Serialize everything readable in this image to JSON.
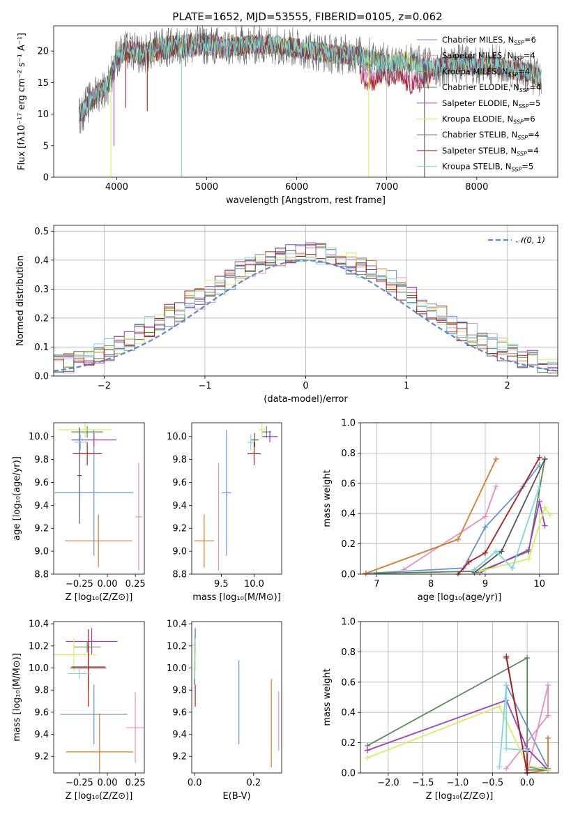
{
  "figure_title": "PLATE=1652, MJD=53555, FIBERID=0105, z=0.062",
  "model_colors": [
    "#6a8fd8",
    "#e58fbf",
    "#d9792a",
    "#5a8a5a",
    "#9a3fbf",
    "#d6f05a",
    "#555555",
    "#b01c1c",
    "#7dd8dc"
  ],
  "chart_data": [
    {
      "id": "spectrum",
      "type": "line",
      "title": "PLATE=1652, MJD=53555, FIBERID=0105, z=0.062",
      "xlabel": "wavelength [Angstrom, rest frame]",
      "ylabel": "Flux [fλ10⁻¹⁷ erg cm⁻² s⁻¹ A⁻¹]",
      "xlim": [
        3300,
        8900
      ],
      "ylim": [
        0,
        24
      ],
      "xticks": [
        4000,
        5000,
        6000,
        7000,
        8000
      ],
      "yticks": [
        0,
        5,
        10,
        15,
        20
      ],
      "grid": false,
      "legend": "top-right",
      "legend_entries": [
        "Chabrier MILES, N_SSP=6",
        "Salpeter MILES, N_SSP=4",
        "Kroupa MILES, N_SSP=4",
        "Chabrier ELODIE, N_SSP=4",
        "Salpeter ELODIE, N_SSP=5",
        "Kroupa ELODIE, N_SSP=6",
        "Chabrier STELIB, N_SSP=4",
        "Salpeter STELIB, N_SSP=4",
        "Kroupa STELIB, N_SSP=5"
      ],
      "legend_colors": [
        "#6a8fd8",
        "#e58fbf",
        "#d9792a",
        "#5a8a5a",
        "#9a3fbf",
        "#d6f05a",
        "#555555",
        "#b01c1c",
        "#7dd8dc"
      ],
      "continuum": {
        "x": [
          3600,
          3700,
          3800,
          3900,
          4000,
          4100,
          4300,
          4500,
          4800,
          5000,
          5200,
          5500,
          5800,
          6000,
          6200,
          6400,
          6600,
          6800,
          7000,
          7200,
          7400,
          7600,
          7800,
          8000,
          8200,
          8400,
          8600,
          8700
        ],
        "y": [
          10.0,
          12.0,
          13.5,
          14.5,
          19.0,
          20.0,
          19.5,
          20.5,
          20.8,
          21.0,
          20.5,
          21.0,
          21.0,
          20.5,
          20.0,
          19.5,
          19.5,
          19.0,
          18.0,
          18.5,
          17.5,
          17.5,
          18.0,
          17.5,
          18.0,
          17.0,
          16.5,
          15.5
        ]
      },
      "lower_branch": {
        "x": [
          6650,
          6750,
          6850,
          6950,
          7050,
          7150,
          7250,
          7350,
          7450,
          7550
        ],
        "y": [
          18.0,
          16.0,
          15.5,
          16.5,
          16.0,
          16.2,
          15.0,
          15.2,
          16.0,
          17.0
        ]
      },
      "absorption_lines": [
        {
          "x": 3935,
          "y": 0.0
        },
        {
          "x": 4720,
          "y": 0.0
        },
        {
          "x": 6800,
          "y": 0.0
        },
        {
          "x": 7420,
          "y": 0.0
        },
        {
          "x": 3970,
          "y": 5.0
        },
        {
          "x": 4340,
          "y": 10.5
        },
        {
          "x": 4100,
          "y": 11.0
        }
      ]
    },
    {
      "id": "residuals",
      "type": "bar",
      "xlabel": "(data-model)/error",
      "ylabel": "Normed distribution",
      "xlim": [
        -2.5,
        2.5
      ],
      "ylim": [
        0,
        0.52
      ],
      "xticks": [
        -2,
        -1,
        0,
        1,
        2
      ],
      "yticks": [
        0.0,
        0.1,
        0.2,
        0.3,
        0.4,
        0.5
      ],
      "grid": true,
      "legend": "top-right",
      "legend_entry": "𝒩(0, 1)",
      "normal_color": "#5b86d6",
      "bin_width": 0.1
    },
    {
      "id": "z-age",
      "type": "scatter",
      "xlabel": "Z [log₁₀(Z/Z⊙)]",
      "ylabel": "age  [log₁₀(age/yr)]",
      "xlim": [
        -0.48,
        0.33
      ],
      "ylim": [
        8.8,
        10.12
      ],
      "xticks": [
        -0.25,
        0.0,
        0.25
      ],
      "yticks": [
        8.8,
        9.0,
        9.2,
        9.4,
        9.6,
        9.8,
        10.0
      ],
      "grid": false,
      "points": [
        {
          "x": -0.12,
          "y": 9.51,
          "xerr": 0.35,
          "yerr": 0.55,
          "c": 0
        },
        {
          "x": 0.28,
          "y": 9.3,
          "xerr": 0.03,
          "yerr": 0.47,
          "c": 1
        },
        {
          "x": -0.08,
          "y": 9.09,
          "xerr": 0.3,
          "yerr": 0.23,
          "c": 2
        },
        {
          "x": -0.18,
          "y": 10.04,
          "xerr": 0.14,
          "yerr": 0.05,
          "c": 3
        },
        {
          "x": -0.12,
          "y": 9.97,
          "xerr": 0.2,
          "yerr": 0.06,
          "c": 4
        },
        {
          "x": -0.2,
          "y": 10.06,
          "xerr": 0.24,
          "yerr": 0.07,
          "c": 5
        },
        {
          "x": -0.25,
          "y": 9.66,
          "xerr": 0.02,
          "yerr": 0.42,
          "c": 6
        },
        {
          "x": -0.18,
          "y": 9.85,
          "xerr": 0.13,
          "yerr": 0.1,
          "c": 7
        },
        {
          "x": -0.24,
          "y": 9.95,
          "xerr": 0.06,
          "yerr": 0.07,
          "c": 8
        }
      ]
    },
    {
      "id": "mass-age",
      "type": "scatter",
      "xlabel": "mass [log₁₀(M/M⊙)]",
      "ylabel": "",
      "xlim": [
        9.05,
        10.42
      ],
      "ylim": [
        8.8,
        10.12
      ],
      "xticks": [
        9.5,
        10.0
      ],
      "yticks": [
        8.8,
        9.0,
        9.2,
        9.4,
        9.6,
        9.8,
        10.0
      ],
      "grid": false,
      "points": [
        {
          "x": 9.58,
          "y": 9.51,
          "xerr": 0.07,
          "yerr": 0.55,
          "c": 0
        },
        {
          "x": 9.46,
          "y": 9.3,
          "xerr": 0.0,
          "yerr": 0.47,
          "c": 1
        },
        {
          "x": 9.24,
          "y": 9.09,
          "xerr": 0.15,
          "yerr": 0.23,
          "c": 2
        },
        {
          "x": 10.19,
          "y": 10.04,
          "xerr": 0.07,
          "yerr": 0.05,
          "c": 3
        },
        {
          "x": 10.24,
          "y": 10.0,
          "xerr": 0.12,
          "yerr": 0.05,
          "c": 4
        },
        {
          "x": 10.12,
          "y": 10.06,
          "xerr": 0.05,
          "yerr": 0.07,
          "c": 5
        },
        {
          "x": 10.01,
          "y": 9.97,
          "xerr": 0.06,
          "yerr": 0.06,
          "c": 6
        },
        {
          "x": 10.0,
          "y": 9.85,
          "xerr": 0.1,
          "yerr": 0.1,
          "c": 7
        },
        {
          "x": 9.95,
          "y": 9.95,
          "xerr": 0.05,
          "yerr": 0.07,
          "c": 8
        }
      ]
    },
    {
      "id": "age-weight",
      "type": "line",
      "xlabel": "age  [log₁₀(age/yr)]",
      "ylabel": "mass weight",
      "xlim": [
        6.7,
        10.35
      ],
      "ylim": [
        0.0,
        1.0
      ],
      "xticks": [
        7,
        8,
        9,
        10
      ],
      "yticks": [
        0.0,
        0.2,
        0.4,
        0.6,
        0.8,
        1.0
      ],
      "grid": true,
      "series": [
        {
          "c": 0,
          "x": [
            6.8,
            8.6,
            9.0,
            9.7,
            10.0
          ],
          "y": [
            0.005,
            0.04,
            0.31,
            0.58,
            0.72
          ]
        },
        {
          "c": 1,
          "x": [
            7.5,
            9.0,
            9.2
          ],
          "y": [
            0.03,
            0.38,
            0.58
          ]
        },
        {
          "c": 2,
          "x": [
            6.8,
            8.5,
            9.2
          ],
          "y": [
            0.005,
            0.23,
            0.76
          ]
        },
        {
          "c": 3,
          "x": [
            7.0,
            8.9,
            9.8,
            10.1
          ],
          "y": [
            0.005,
            0.02,
            0.15,
            0.76
          ]
        },
        {
          "c": 4,
          "x": [
            8.9,
            9.8,
            10.0,
            10.1
          ],
          "y": [
            0.01,
            0.16,
            0.48,
            0.32
          ]
        },
        {
          "c": 5,
          "x": [
            8.9,
            9.8,
            10.1,
            10.2
          ],
          "y": [
            0.02,
            0.1,
            0.44,
            0.39
          ]
        },
        {
          "c": 6,
          "x": [
            8.8,
            9.3,
            10.1
          ],
          "y": [
            0.01,
            0.15,
            0.76
          ]
        },
        {
          "c": 7,
          "x": [
            8.5,
            8.7,
            9.0,
            10.0
          ],
          "y": [
            0.0,
            0.08,
            0.14,
            0.77
          ]
        },
        {
          "c": 8,
          "x": [
            8.8,
            9.2,
            9.5,
            10.0
          ],
          "y": [
            0.03,
            0.15,
            0.04,
            0.58
          ]
        }
      ]
    },
    {
      "id": "z-mass",
      "type": "scatter",
      "xlabel": "Z [log₁₀(Z/Z⊙)]",
      "ylabel": "mass [log₁₀(M/M⊙)]",
      "xlim": [
        -0.48,
        0.33
      ],
      "ylim": [
        9.05,
        10.42
      ],
      "xticks": [
        -0.25,
        0.0,
        0.25
      ],
      "yticks": [
        9.2,
        9.4,
        9.6,
        9.8,
        10.0,
        10.2,
        10.4
      ],
      "grid": false,
      "points": [
        {
          "x": -0.12,
          "y": 9.58,
          "xerr": 0.3,
          "yerr": 0.27,
          "c": 0
        },
        {
          "x": 0.25,
          "y": 9.46,
          "xerr": 0.08,
          "yerr": 0.32,
          "c": 1
        },
        {
          "x": -0.07,
          "y": 9.24,
          "xerr": 0.3,
          "yerr": 0.35,
          "c": 2
        },
        {
          "x": -0.18,
          "y": 10.19,
          "xerr": 0.12,
          "yerr": 0.05,
          "c": 3
        },
        {
          "x": -0.14,
          "y": 10.24,
          "xerr": 0.23,
          "yerr": 0.12,
          "c": 4
        },
        {
          "x": -0.3,
          "y": 10.12,
          "xerr": 0.2,
          "yerr": 0.15,
          "c": 5
        },
        {
          "x": -0.17,
          "y": 10.01,
          "xerr": 0.15,
          "yerr": 0.2,
          "c": 6
        },
        {
          "x": -0.17,
          "y": 10.0,
          "xerr": 0.16,
          "yerr": 0.35,
          "c": 7
        },
        {
          "x": -0.25,
          "y": 9.95,
          "xerr": 0.1,
          "yerr": 0.05,
          "c": 8
        }
      ]
    },
    {
      "id": "ebv-mass",
      "type": "scatter",
      "xlabel": "E(B-V)",
      "ylabel": "",
      "xlim": [
        -0.01,
        0.295
      ],
      "ylim": [
        9.05,
        10.42
      ],
      "xticks": [
        0.0,
        0.2
      ],
      "yticks": [
        9.2,
        9.4,
        9.6,
        9.8,
        10.0,
        10.2,
        10.4
      ],
      "grid": false,
      "points": [
        {
          "x": 0.15,
          "y": 9.69,
          "xerr": 0,
          "yerr": 0.38,
          "c": 0
        },
        {
          "x": 0.285,
          "y": 9.52,
          "xerr": 0,
          "yerr": 0.27,
          "c": 1
        },
        {
          "x": 0.26,
          "y": 9.5,
          "xerr": 0,
          "yerr": 0.4,
          "c": 2
        },
        {
          "x": 0.0,
          "y": 10.19,
          "xerr": 0,
          "yerr": 0.05,
          "c": 3
        },
        {
          "x": 0.002,
          "y": 10.24,
          "xerr": 0,
          "yerr": 0.12,
          "c": 4
        },
        {
          "x": 0.002,
          "y": 10.12,
          "xerr": 0,
          "yerr": 0.15,
          "c": 5
        },
        {
          "x": 0.0,
          "y": 9.95,
          "xerr": 0,
          "yerr": 0.1,
          "c": 6
        },
        {
          "x": 0.002,
          "y": 9.75,
          "xerr": 0,
          "yerr": 0.1,
          "c": 7
        },
        {
          "x": 0.0,
          "y": 10.1,
          "xerr": 0,
          "yerr": 0.2,
          "c": 8
        }
      ]
    },
    {
      "id": "z-weight",
      "type": "line",
      "xlabel": "Z [log₁₀(Z/Z⊙)]",
      "ylabel": "mass weight",
      "xlim": [
        -2.4,
        0.45
      ],
      "ylim": [
        0.0,
        1.0
      ],
      "xticks": [
        -2.0,
        -1.5,
        -1.0,
        -0.5,
        0.0
      ],
      "yticks": [
        0.0,
        0.2,
        0.4,
        0.6,
        0.8,
        1.0
      ],
      "grid": true,
      "series": [
        {
          "c": 0,
          "x": [
            -0.3,
            0.3,
            0.0,
            0.3
          ],
          "y": [
            0.58,
            0.03,
            0.04,
            0.02
          ]
        },
        {
          "c": 1,
          "x": [
            -0.3,
            0.3,
            0.3,
            0.0
          ],
          "y": [
            0.03,
            0.38,
            0.58,
            0.0
          ]
        },
        {
          "c": 2,
          "x": [
            0.0,
            0.3,
            0.3
          ],
          "y": [
            0.0,
            0.02,
            0.23
          ]
        },
        {
          "c": 3,
          "x": [
            -2.3,
            0.0,
            0.0,
            0.3
          ],
          "y": [
            0.18,
            0.76,
            0.02,
            0.02
          ]
        },
        {
          "c": 4,
          "x": [
            -2.3,
            -0.3,
            0.0,
            0.3
          ],
          "y": [
            0.15,
            0.48,
            0.16,
            0.02
          ]
        },
        {
          "c": 5,
          "x": [
            -2.3,
            -0.4,
            0.0,
            0.3
          ],
          "y": [
            0.1,
            0.44,
            0.05,
            0.02
          ]
        },
        {
          "c": 6,
          "x": [
            -0.3,
            0.0,
            0.0
          ],
          "y": [
            0.76,
            0.0,
            0.15
          ]
        },
        {
          "c": 7,
          "x": [
            -0.3,
            0.0,
            0.0
          ],
          "y": [
            0.77,
            0.0,
            0.14
          ]
        },
        {
          "c": 8,
          "x": [
            -0.4,
            -0.3,
            -0.3,
            0.0
          ],
          "y": [
            0.04,
            0.58,
            0.16,
            0.15
          ]
        }
      ]
    }
  ]
}
